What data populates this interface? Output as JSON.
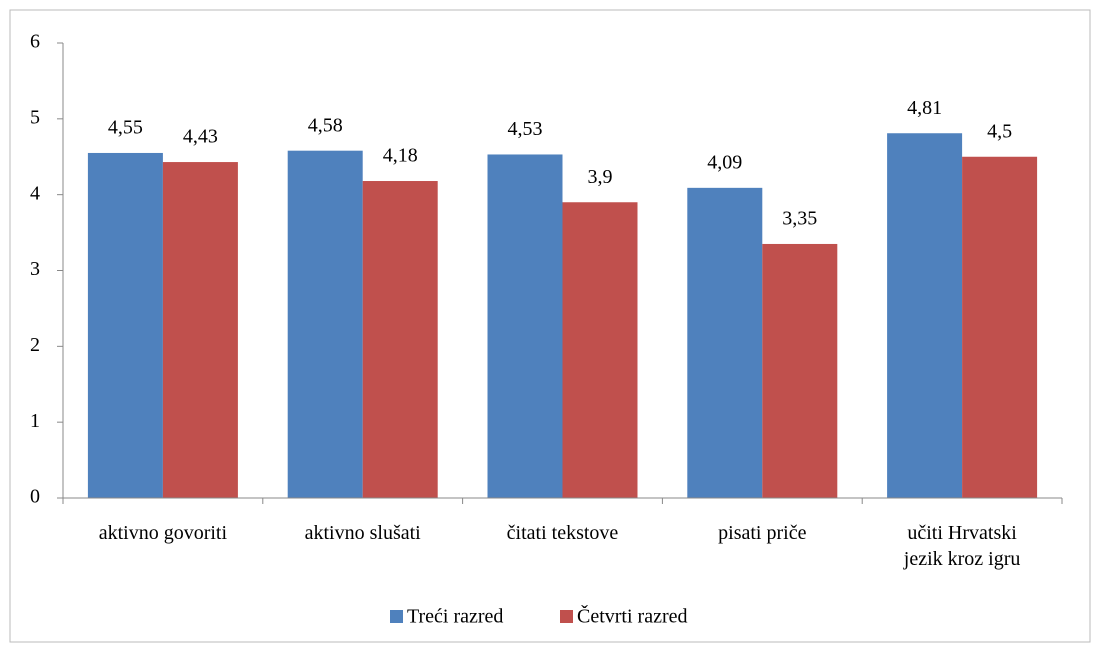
{
  "chart_data": {
    "type": "bar",
    "categories": [
      "aktivno govoriti",
      "aktivno slušati",
      "čitati tekstove",
      "pisati priče",
      "učiti Hrvatski\njezik kroz igru"
    ],
    "series": [
      {
        "name": "Treći razred",
        "color": "#4f81bd",
        "values": [
          4.55,
          4.58,
          4.53,
          4.09,
          4.81
        ],
        "value_labels": [
          "4,55",
          "4,58",
          "4,53",
          "4,09",
          "4,81"
        ]
      },
      {
        "name": "Četvrti razred",
        "color": "#c0504d",
        "values": [
          4.43,
          4.18,
          3.9,
          3.35,
          4.5
        ],
        "value_labels": [
          "4,43",
          "4,18",
          "3,9",
          "3,35",
          "4,5"
        ]
      }
    ],
    "ylim": [
      0,
      6
    ],
    "yticks": [
      0,
      1,
      2,
      3,
      4,
      5,
      6
    ],
    "grid": false,
    "legend": "bottom"
  }
}
